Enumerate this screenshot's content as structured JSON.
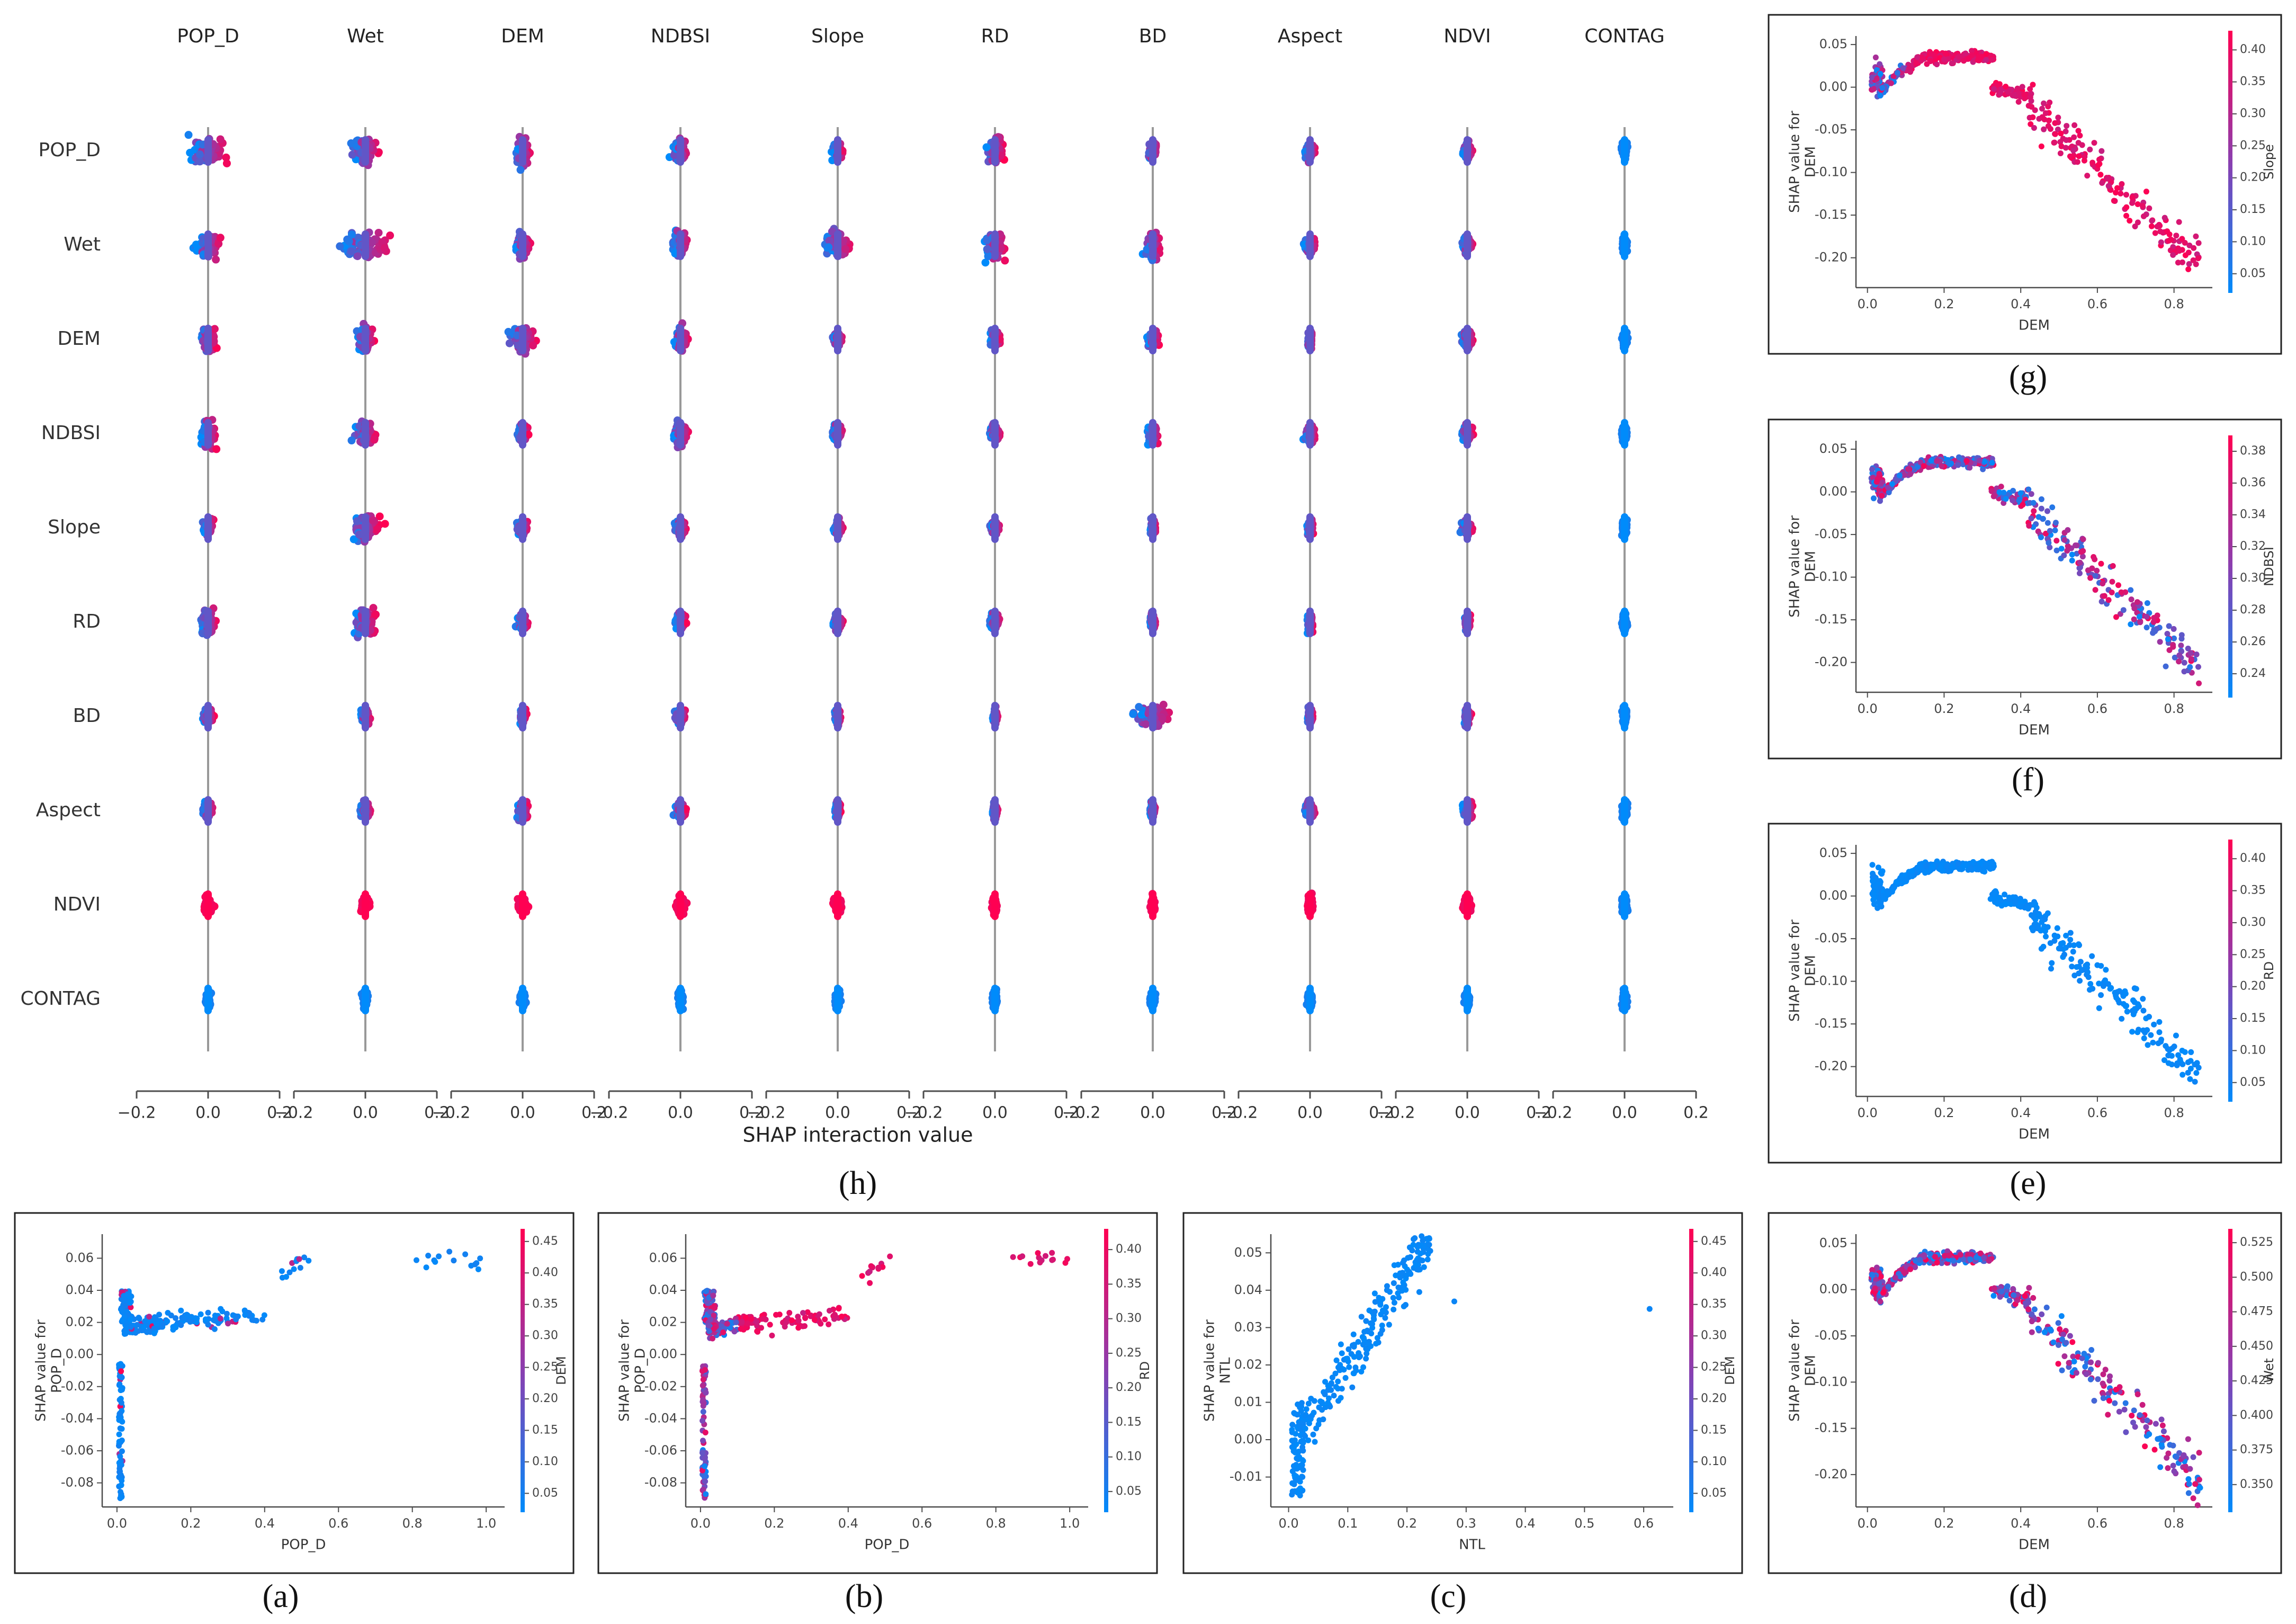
{
  "figure": {
    "captions": {
      "a": "(a)",
      "b": "(b)",
      "c": "(c)",
      "d": "(d)",
      "e": "(e)",
      "f": "(f)",
      "g": "(g)",
      "h": "(h)"
    }
  },
  "colors": {
    "low": "#008bfb",
    "high": "#ff0052",
    "mid": "#8a3fb0",
    "axis": "#4d4d4d",
    "panel_border": "#222222",
    "zero_line": "#999999"
  },
  "chart_data": [
    {
      "id": "h",
      "type": "scatter",
      "subtype": "shap-interaction-summary",
      "features": [
        "POP_D",
        "Wet",
        "DEM",
        "NDBSI",
        "Slope",
        "RD",
        "BD",
        "Aspect",
        "NDVI",
        "CONTAG"
      ],
      "column_titles": [
        "POP_D",
        "Wet",
        "DEM",
        "NDBSI",
        "Slope",
        "RD",
        "BD",
        "Aspect",
        "NDVI",
        "CONTAG"
      ],
      "row_labels": [
        "POP_D",
        "Wet",
        "DEM",
        "NDBSI",
        "Slope",
        "RD",
        "BD",
        "Aspect",
        "NDVI",
        "CONTAG"
      ],
      "xlabel": "SHAP interaction value",
      "xlim": [
        -0.2,
        0.2
      ],
      "xticks": [
        -0.2,
        0.0,
        0.2
      ],
      "xtick_labels": [
        "−0.2",
        "0.0",
        "0.2"
      ],
      "spread_note": "Each cell shows the distribution of SHAP interaction values (approximate extents) coloured by feature value (blue = low, pink = high).",
      "spread": [
        [
          0.07,
          0.05,
          0.03,
          0.03,
          0.02,
          0.03,
          0.02,
          0.02,
          0.02,
          0.01
        ],
        [
          0.05,
          0.1,
          0.03,
          0.03,
          0.05,
          0.04,
          0.03,
          0.02,
          0.02,
          0.01
        ],
        [
          0.03,
          0.03,
          0.05,
          0.03,
          0.02,
          0.02,
          0.02,
          0.01,
          0.02,
          0.01
        ],
        [
          0.03,
          0.04,
          0.02,
          0.03,
          0.02,
          0.02,
          0.02,
          0.02,
          0.02,
          0.01
        ],
        [
          0.02,
          0.05,
          0.02,
          0.02,
          0.02,
          0.02,
          0.01,
          0.01,
          0.02,
          0.01
        ],
        [
          0.03,
          0.04,
          0.02,
          0.02,
          0.02,
          0.02,
          0.01,
          0.01,
          0.01,
          0.01
        ],
        [
          0.02,
          0.02,
          0.01,
          0.02,
          0.01,
          0.01,
          0.08,
          0.01,
          0.01,
          0.01
        ],
        [
          0.02,
          0.02,
          0.02,
          0.02,
          0.01,
          0.01,
          0.01,
          0.02,
          0.02,
          0.01
        ],
        [
          0.02,
          0.02,
          0.02,
          0.02,
          0.02,
          0.01,
          0.01,
          0.01,
          0.02,
          0.01
        ],
        [
          0.01,
          0.01,
          0.01,
          0.01,
          0.01,
          0.01,
          0.01,
          0.01,
          0.01,
          0.01
        ]
      ]
    },
    {
      "id": "a",
      "type": "scatter",
      "subtype": "shap-dependence",
      "feature": "POP_D",
      "xlabel": "POP_D",
      "ylabel": "SHAP value for\nPOP_D",
      "color_feature": "DEM",
      "cbar_label": "DEM",
      "xlim": [
        -0.04,
        1.05
      ],
      "ylim": [
        -0.095,
        0.075
      ],
      "xticks": [
        "0.0",
        "0.2",
        "0.4",
        "0.6",
        "0.8",
        "1.0"
      ],
      "yticks": [
        "-0.08",
        "-0.06",
        "-0.04",
        "-0.02",
        "0.00",
        "0.02",
        "0.04",
        "0.06"
      ],
      "cbar_ticks": [
        "0.05",
        "0.10",
        "0.15",
        "0.20",
        "0.25",
        "0.30",
        "0.35",
        "0.40",
        "0.45"
      ],
      "cbar_range": [
        0.02,
        0.47
      ],
      "shape": "popd",
      "color_mode": "mostly-low"
    },
    {
      "id": "b",
      "type": "scatter",
      "subtype": "shap-dependence",
      "feature": "POP_D",
      "xlabel": "POP_D",
      "ylabel": "SHAP value for\nPOP_D",
      "color_feature": "RD",
      "cbar_label": "RD",
      "xlim": [
        -0.04,
        1.05
      ],
      "ylim": [
        -0.095,
        0.075
      ],
      "xticks": [
        "0.0",
        "0.2",
        "0.4",
        "0.6",
        "0.8",
        "1.0"
      ],
      "yticks": [
        "-0.08",
        "-0.06",
        "-0.04",
        "-0.02",
        "0.00",
        "0.02",
        "0.04",
        "0.06"
      ],
      "cbar_ticks": [
        "0.05",
        "0.10",
        "0.15",
        "0.20",
        "0.25",
        "0.30",
        "0.35",
        "0.40"
      ],
      "cbar_range": [
        0.02,
        0.43
      ],
      "shape": "popd",
      "color_mode": "high-with-x"
    },
    {
      "id": "c",
      "type": "scatter",
      "subtype": "shap-dependence",
      "feature": "NTL",
      "xlabel": "NTL",
      "ylabel": "SHAP value for\nNTL",
      "color_feature": "DEM",
      "cbar_label": "DEM",
      "xlim": [
        -0.03,
        0.65
      ],
      "ylim": [
        -0.018,
        0.055
      ],
      "xticks": [
        "0.0",
        "0.1",
        "0.2",
        "0.3",
        "0.4",
        "0.5",
        "0.6"
      ],
      "yticks": [
        "-0.01",
        "0.00",
        "0.01",
        "0.02",
        "0.03",
        "0.04",
        "0.05"
      ],
      "cbar_ticks": [
        "0.05",
        "0.10",
        "0.15",
        "0.20",
        "0.25",
        "0.30",
        "0.35",
        "0.40",
        "0.45"
      ],
      "cbar_range": [
        0.02,
        0.47
      ],
      "shape": "ntl",
      "color_mode": "all-low"
    },
    {
      "id": "d",
      "type": "scatter",
      "subtype": "shap-dependence",
      "feature": "DEM",
      "xlabel": "DEM",
      "ylabel": "SHAP value for\nDEM",
      "color_feature": "Wet",
      "cbar_label": "Wet",
      "xlim": [
        -0.03,
        0.9
      ],
      "ylim": [
        -0.235,
        0.06
      ],
      "xticks": [
        "0.0",
        "0.2",
        "0.4",
        "0.6",
        "0.8"
      ],
      "yticks": [
        "-0.20",
        "-0.15",
        "-0.10",
        "-0.05",
        "0.00",
        "0.05"
      ],
      "cbar_ticks": [
        "0.350",
        "0.375",
        "0.400",
        "0.425",
        "0.450",
        "0.475",
        "0.500",
        "0.525"
      ],
      "cbar_range": [
        0.33,
        0.535
      ],
      "shape": "dem",
      "color_mode": "mixed"
    },
    {
      "id": "e",
      "type": "scatter",
      "subtype": "shap-dependence",
      "feature": "DEM",
      "xlabel": "DEM",
      "ylabel": "SHAP value for\nDEM",
      "color_feature": "RD",
      "cbar_label": "RD",
      "xlim": [
        -0.03,
        0.9
      ],
      "ylim": [
        -0.235,
        0.06
      ],
      "xticks": [
        "0.0",
        "0.2",
        "0.4",
        "0.6",
        "0.8"
      ],
      "yticks": [
        "-0.20",
        "-0.15",
        "-0.10",
        "-0.05",
        "0.00",
        "0.05"
      ],
      "cbar_ticks": [
        "0.05",
        "0.10",
        "0.15",
        "0.20",
        "0.25",
        "0.30",
        "0.35",
        "0.40"
      ],
      "cbar_range": [
        0.02,
        0.43
      ],
      "shape": "dem",
      "color_mode": "all-low"
    },
    {
      "id": "f",
      "type": "scatter",
      "subtype": "shap-dependence",
      "feature": "DEM",
      "xlabel": "DEM",
      "ylabel": "SHAP value for\nDEM",
      "color_feature": "NDBSI",
      "cbar_label": "NDBSI",
      "xlim": [
        -0.03,
        0.9
      ],
      "ylim": [
        -0.235,
        0.06
      ],
      "xticks": [
        "0.0",
        "0.2",
        "0.4",
        "0.6",
        "0.8"
      ],
      "yticks": [
        "-0.20",
        "-0.15",
        "-0.10",
        "-0.05",
        "0.00",
        "0.05"
      ],
      "cbar_ticks": [
        "0.24",
        "0.26",
        "0.28",
        "0.30",
        "0.32",
        "0.34",
        "0.36",
        "0.38"
      ],
      "cbar_range": [
        0.225,
        0.39
      ],
      "shape": "dem",
      "color_mode": "mixed"
    },
    {
      "id": "g",
      "type": "scatter",
      "subtype": "shap-dependence",
      "feature": "DEM",
      "xlabel": "DEM",
      "ylabel": "SHAP value for\nDEM",
      "color_feature": "Slope",
      "cbar_label": "Slope",
      "xlim": [
        -0.03,
        0.9
      ],
      "ylim": [
        -0.235,
        0.06
      ],
      "xticks": [
        "0.0",
        "0.2",
        "0.4",
        "0.6",
        "0.8"
      ],
      "yticks": [
        "-0.20",
        "-0.15",
        "-0.10",
        "-0.05",
        "0.00",
        "0.05"
      ],
      "cbar_ticks": [
        "0.05",
        "0.10",
        "0.15",
        "0.20",
        "0.25",
        "0.30",
        "0.35",
        "0.40"
      ],
      "cbar_range": [
        0.02,
        0.43
      ],
      "shape": "dem",
      "color_mode": "high-with-x"
    }
  ]
}
